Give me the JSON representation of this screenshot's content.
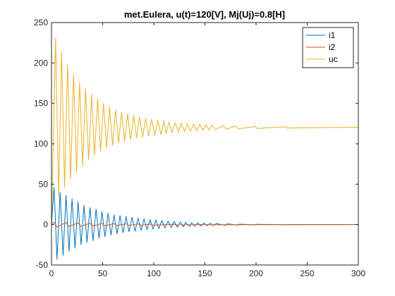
{
  "chart_data": {
    "type": "line",
    "title": "met.Eulera, u(t)=120[V], Mj(Uj)=0.8[H]",
    "xlabel": "",
    "ylabel": "",
    "xlim": [
      0,
      300
    ],
    "ylim": [
      -50,
      250
    ],
    "x_ticks": [
      0,
      50,
      100,
      150,
      200,
      250,
      300
    ],
    "y_ticks": [
      -50,
      0,
      50,
      100,
      150,
      200,
      250
    ],
    "x_tick_labels": [
      "0",
      "50",
      "100",
      "150",
      "200",
      "250",
      "300"
    ],
    "y_tick_labels": [
      "-50",
      "0",
      "50",
      "100",
      "150",
      "200",
      "250"
    ],
    "grid": false,
    "legend_position": "top-right",
    "oscillation_period": 5.87,
    "series": [
      {
        "name": "i1",
        "color": "#0072BD",
        "description": "damped oscillation around 0",
        "start": [
          0,
          0
        ],
        "peaks": [
          [
            2.5,
            46
          ],
          [
            8.4,
            40
          ],
          [
            14.2,
            36
          ],
          [
            20.1,
            32
          ],
          [
            26,
            28
          ],
          [
            31.8,
            24
          ],
          [
            37.7,
            21
          ],
          [
            43.6,
            19
          ],
          [
            49.4,
            16
          ],
          [
            55.3,
            14
          ],
          [
            61.2,
            12
          ],
          [
            67,
            11
          ],
          [
            72.9,
            10
          ],
          [
            78.8,
            9
          ],
          [
            84.6,
            8
          ],
          [
            90.5,
            7
          ],
          [
            96.4,
            6
          ],
          [
            102,
            5.5
          ],
          [
            108,
            4.8
          ],
          [
            114,
            4.2
          ],
          [
            120,
            3.7
          ],
          [
            126,
            3.2
          ],
          [
            131,
            2.8
          ],
          [
            137,
            2.4
          ],
          [
            143,
            2.1
          ],
          [
            149,
            1.8
          ],
          [
            155,
            1.5
          ],
          [
            161,
            1.2
          ],
          [
            172,
            0.9
          ],
          [
            184,
            0.6
          ],
          [
            200,
            0.4
          ],
          [
            230,
            0.2
          ],
          [
            300,
            0
          ]
        ],
        "troughs": [
          [
            5.4,
            -43
          ],
          [
            11.3,
            -38
          ],
          [
            17.1,
            -33
          ],
          [
            23,
            -29
          ],
          [
            28.9,
            -25
          ],
          [
            34.7,
            -22
          ],
          [
            40.6,
            -20
          ],
          [
            46.5,
            -17
          ],
          [
            52.3,
            -15
          ],
          [
            58.2,
            -13
          ],
          [
            64.1,
            -11.5
          ],
          [
            70,
            -10
          ],
          [
            75.8,
            -9
          ],
          [
            81.7,
            -8
          ],
          [
            87.6,
            -7
          ],
          [
            93.4,
            -6.2
          ],
          [
            99.3,
            -5.5
          ],
          [
            105,
            -4.8
          ],
          [
            111,
            -4.2
          ],
          [
            117,
            -3.7
          ],
          [
            123,
            -3.2
          ],
          [
            129,
            -2.8
          ],
          [
            135,
            -2.4
          ],
          [
            140,
            -2.1
          ],
          [
            146,
            -1.8
          ],
          [
            152,
            -1.5
          ],
          [
            158,
            -1.2
          ],
          [
            170,
            -0.9
          ],
          [
            182,
            -0.6
          ],
          [
            200,
            -0.4
          ],
          [
            230,
            -0.2
          ],
          [
            300,
            0
          ]
        ]
      },
      {
        "name": "i2",
        "color": "#D95319",
        "description": "small damped oscillation around 0",
        "start": [
          0,
          0
        ],
        "peaks": [
          [
            2.5,
            3
          ],
          [
            14.2,
            2.6
          ],
          [
            26,
            2.2
          ],
          [
            37.7,
            1.8
          ],
          [
            49.4,
            1.5
          ],
          [
            61.2,
            1.2
          ],
          [
            72.9,
            1
          ],
          [
            84.6,
            0.8
          ],
          [
            96.4,
            0.6
          ],
          [
            120,
            0.4
          ],
          [
            150,
            0.2
          ],
          [
            300,
            0
          ]
        ],
        "troughs": [
          [
            5.4,
            -3
          ],
          [
            17.1,
            -2.6
          ],
          [
            28.9,
            -2.2
          ],
          [
            40.6,
            -1.8
          ],
          [
            52.3,
            -1.5
          ],
          [
            64.1,
            -1.2
          ],
          [
            75.8,
            -1
          ],
          [
            87.6,
            -0.8
          ],
          [
            99.3,
            -0.6
          ],
          [
            123,
            -0.4
          ],
          [
            153,
            -0.2
          ],
          [
            300,
            0
          ]
        ]
      },
      {
        "name": "uc",
        "color": "#EDB120",
        "description": "damped oscillation converging to 120",
        "start": [
          0,
          0
        ],
        "steady_value": 120,
        "peaks": [
          [
            4,
            231
          ],
          [
            9.9,
            213
          ],
          [
            15.7,
            197
          ],
          [
            21.6,
            186
          ],
          [
            27.5,
            176
          ],
          [
            33.3,
            168
          ],
          [
            39.2,
            161
          ],
          [
            45.1,
            155
          ],
          [
            50.9,
            150
          ],
          [
            56.8,
            146
          ],
          [
            62.7,
            142
          ],
          [
            68.5,
            139
          ],
          [
            74.4,
            137
          ],
          [
            80.3,
            135
          ],
          [
            86.1,
            133
          ],
          [
            92,
            131
          ],
          [
            97.9,
            130
          ],
          [
            104,
            129
          ],
          [
            110,
            128
          ],
          [
            115,
            127
          ],
          [
            121,
            126
          ],
          [
            127,
            125.5
          ],
          [
            133,
            125
          ],
          [
            139,
            124.5
          ],
          [
            145,
            124
          ],
          [
            151,
            123.5
          ],
          [
            157,
            123
          ],
          [
            168,
            122.5
          ],
          [
            180,
            122
          ],
          [
            200,
            121.5
          ],
          [
            230,
            121
          ],
          [
            300,
            120.5
          ]
        ],
        "troughs": [
          [
            7,
            35
          ],
          [
            12.8,
            46
          ],
          [
            18.7,
            56
          ],
          [
            24.5,
            65
          ],
          [
            30.4,
            73
          ],
          [
            36.3,
            80
          ],
          [
            42.1,
            86
          ],
          [
            48,
            91
          ],
          [
            53.9,
            95
          ],
          [
            59.7,
            98
          ],
          [
            65.6,
            101
          ],
          [
            71.5,
            103
          ],
          [
            77.3,
            105
          ],
          [
            83.2,
            107
          ],
          [
            89.1,
            108
          ],
          [
            94.9,
            109.5
          ],
          [
            101,
            110.5
          ],
          [
            107,
            111.5
          ],
          [
            112,
            112.5
          ],
          [
            118,
            113.5
          ],
          [
            124,
            114.5
          ],
          [
            130,
            115
          ],
          [
            136,
            115.5
          ],
          [
            142,
            116
          ],
          [
            148,
            116.5
          ],
          [
            154,
            117
          ],
          [
            160,
            117.5
          ],
          [
            171,
            118
          ],
          [
            183,
            118.5
          ],
          [
            200,
            119
          ],
          [
            230,
            119.5
          ],
          [
            300,
            119.5
          ]
        ]
      }
    ]
  }
}
